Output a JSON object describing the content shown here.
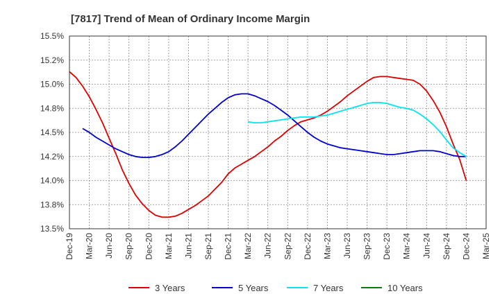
{
  "chart_data": {
    "type": "line",
    "title": "[7817]  Trend of Mean of Ordinary Income Margin",
    "xlabel": "",
    "ylabel": "",
    "x_tick_labels": [
      "Dec-19",
      "Mar-20",
      "Jun-20",
      "Sep-20",
      "Dec-20",
      "Mar-21",
      "Jun-21",
      "Sep-21",
      "Dec-21",
      "Mar-22",
      "Jun-22",
      "Sep-22",
      "Dec-22",
      "Mar-23",
      "Jun-23",
      "Sep-23",
      "Dec-23",
      "Mar-24",
      "Jun-24",
      "Sep-24",
      "Dec-24",
      "Mar-25"
    ],
    "y_tick_labels": [
      "13.5%",
      "13.8%",
      "14.0%",
      "14.2%",
      "14.5%",
      "14.8%",
      "15.0%",
      "15.2%",
      "15.5%"
    ],
    "ylim": [
      13.5,
      15.5
    ],
    "y_ticks": [
      13.5,
      13.75,
      14.0,
      14.25,
      14.5,
      14.75,
      15.0,
      15.25,
      15.5
    ],
    "grid": true,
    "legend_position": "bottom",
    "series": [
      {
        "name": "3 Years",
        "color": "#dd0000",
        "x": [
          "Dec-19",
          "Jan-20",
          "Feb-20",
          "Mar-20",
          "Apr-20",
          "May-20",
          "Jun-20",
          "Jul-20",
          "Aug-20",
          "Sep-20",
          "Oct-20",
          "Nov-20",
          "Dec-20",
          "Jan-21",
          "Feb-21",
          "Mar-21",
          "Apr-21",
          "May-21",
          "Jun-21",
          "Jul-21",
          "Aug-21",
          "Sep-21",
          "Oct-21",
          "Nov-21",
          "Dec-21",
          "Jan-22",
          "Feb-22",
          "Mar-22",
          "Apr-22",
          "May-22",
          "Jun-22",
          "Jul-22",
          "Aug-22",
          "Sep-22",
          "Oct-22",
          "Nov-22",
          "Dec-22",
          "Jan-23",
          "Feb-23",
          "Mar-23",
          "Apr-23",
          "May-23",
          "Jun-23",
          "Jul-23",
          "Aug-23",
          "Sep-23",
          "Oct-23",
          "Nov-23",
          "Dec-23",
          "Jan-24",
          "Feb-24",
          "Mar-24",
          "Apr-24",
          "May-24",
          "Jun-24",
          "Jul-24",
          "Aug-24",
          "Sep-24",
          "Oct-24",
          "Nov-24",
          "Dec-24"
        ],
        "values": [
          15.13,
          15.07,
          14.98,
          14.87,
          14.74,
          14.6,
          14.44,
          14.28,
          14.11,
          13.97,
          13.85,
          13.76,
          13.69,
          13.64,
          13.62,
          13.62,
          13.63,
          13.66,
          13.7,
          13.74,
          13.79,
          13.84,
          13.91,
          13.98,
          14.07,
          14.13,
          14.17,
          14.21,
          14.25,
          14.3,
          14.35,
          14.41,
          14.46,
          14.52,
          14.57,
          14.61,
          14.63,
          14.65,
          14.68,
          14.72,
          14.77,
          14.82,
          14.88,
          14.93,
          14.98,
          15.03,
          15.07,
          15.08,
          15.08,
          15.07,
          15.06,
          15.05,
          15.04,
          15.0,
          14.93,
          14.83,
          14.71,
          14.56,
          14.38,
          14.22,
          14.0
        ]
      },
      {
        "name": "5 Years",
        "color": "#0000cc",
        "x": [
          "Dec-19",
          "Jan-20",
          "Feb-20",
          "Mar-20",
          "Apr-20",
          "May-20",
          "Jun-20",
          "Jul-20",
          "Aug-20",
          "Sep-20",
          "Oct-20",
          "Nov-20",
          "Dec-20",
          "Jan-21",
          "Feb-21",
          "Mar-21",
          "Apr-21",
          "May-21",
          "Jun-21",
          "Jul-21",
          "Aug-21",
          "Sep-21",
          "Oct-21",
          "Nov-21",
          "Dec-21",
          "Jan-22",
          "Feb-22",
          "Mar-22",
          "Apr-22",
          "May-22",
          "Jun-22",
          "Jul-22",
          "Aug-22",
          "Sep-22",
          "Oct-22",
          "Nov-22",
          "Dec-22",
          "Jan-23",
          "Feb-23",
          "Mar-23",
          "Apr-23",
          "May-23",
          "Jun-23",
          "Jul-23",
          "Aug-23",
          "Sep-23",
          "Oct-23",
          "Nov-23",
          "Dec-23",
          "Jan-24",
          "Feb-24",
          "Mar-24",
          "Apr-24",
          "May-24",
          "Jun-24",
          "Jul-24",
          "Aug-24",
          "Sep-24",
          "Oct-24",
          "Nov-24",
          "Dec-24"
        ],
        "values": [
          null,
          null,
          14.54,
          14.5,
          14.45,
          14.41,
          14.37,
          14.33,
          14.3,
          14.27,
          14.25,
          14.24,
          14.24,
          14.25,
          14.27,
          14.3,
          14.35,
          14.41,
          14.48,
          14.55,
          14.62,
          14.69,
          14.75,
          14.81,
          14.86,
          14.89,
          14.9,
          14.9,
          14.88,
          14.85,
          14.82,
          14.78,
          14.73,
          14.68,
          14.62,
          14.56,
          14.5,
          14.45,
          14.41,
          14.38,
          14.36,
          14.34,
          14.33,
          14.32,
          14.31,
          14.3,
          14.29,
          14.28,
          14.27,
          14.27,
          14.28,
          14.29,
          14.3,
          14.31,
          14.31,
          14.31,
          14.3,
          14.28,
          14.26,
          14.25,
          14.25
        ]
      },
      {
        "name": "7 Years",
        "color": "#00e5ee",
        "x": [
          "Mar-22",
          "Apr-22",
          "May-22",
          "Jun-22",
          "Jul-22",
          "Aug-22",
          "Sep-22",
          "Oct-22",
          "Nov-22",
          "Dec-22",
          "Jan-23",
          "Feb-23",
          "Mar-23",
          "Apr-23",
          "May-23",
          "Jun-23",
          "Jul-23",
          "Aug-23",
          "Sep-23",
          "Oct-23",
          "Nov-23",
          "Dec-23",
          "Jan-24",
          "Feb-24",
          "Mar-24",
          "Apr-24",
          "May-24",
          "Jun-24",
          "Jul-24",
          "Aug-24",
          "Sep-24",
          "Oct-24",
          "Nov-24",
          "Dec-24"
        ],
        "values": [
          14.61,
          14.6,
          14.6,
          14.61,
          14.62,
          14.63,
          14.64,
          14.65,
          14.66,
          14.66,
          14.66,
          14.67,
          14.68,
          14.7,
          14.72,
          14.74,
          14.76,
          14.78,
          14.8,
          14.81,
          14.81,
          14.8,
          14.78,
          14.76,
          14.75,
          14.73,
          14.69,
          14.64,
          14.58,
          14.51,
          14.42,
          14.34,
          14.29,
          14.25
        ]
      },
      {
        "name": "10 Years",
        "color": "#008000",
        "x": [],
        "values": []
      }
    ]
  }
}
